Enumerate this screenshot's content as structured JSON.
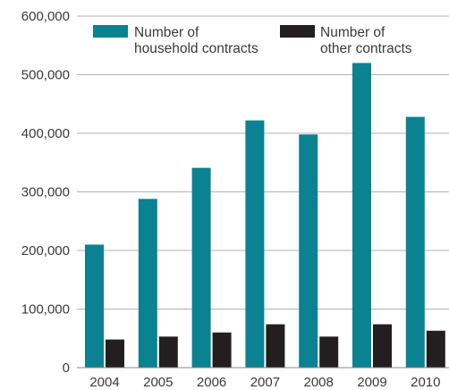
{
  "chart_data": {
    "type": "bar",
    "categories": [
      "2004",
      "2005",
      "2006",
      "2007",
      "2008",
      "2009",
      "2010"
    ],
    "series": [
      {
        "name": "Number of household contracts",
        "name_lines": [
          "Number of",
          "household contracts"
        ],
        "color": "#0a8291",
        "values": [
          210000,
          288000,
          341000,
          422000,
          398000,
          520000,
          428000
        ]
      },
      {
        "name": "Number of other contracts",
        "name_lines": [
          "Number of",
          "other contracts"
        ],
        "color": "#231f20",
        "values": [
          48000,
          53000,
          60000,
          74000,
          53000,
          74000,
          63000
        ]
      }
    ],
    "ylim": [
      0,
      600000
    ],
    "yticks": [
      0,
      100000,
      200000,
      300000,
      400000,
      500000,
      600000
    ],
    "ytick_labels": [
      "0",
      "100,000",
      "200,000",
      "300,000",
      "400,000",
      "500,000",
      "600,000"
    ],
    "grid": true,
    "legend_position": "top"
  }
}
